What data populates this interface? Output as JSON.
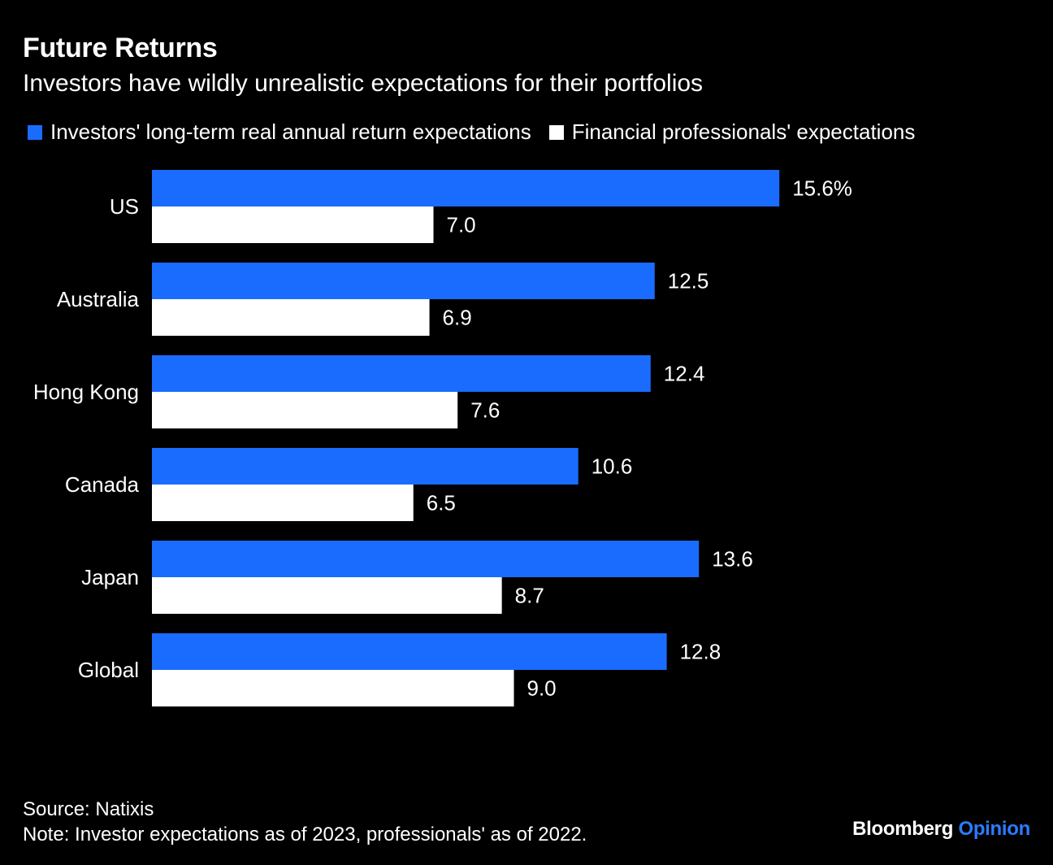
{
  "header": {
    "title": "Future Returns",
    "subtitle": "Investors have wildly unrealistic expectations for their portfolios"
  },
  "legend": {
    "items": [
      {
        "label": "Investors' long-term real annual return expectations",
        "color": "#1a6cff"
      },
      {
        "label": "Financial professionals' expectations",
        "color": "#ffffff"
      }
    ]
  },
  "footer": {
    "source": "Source: Natixis",
    "note": "Note: Investor expectations as of 2023, professionals' as of 2022.",
    "brand_main": "Bloomberg",
    "brand_accent": "Opinion"
  },
  "chart_data": {
    "type": "bar",
    "orientation": "horizontal",
    "title": "Future Returns",
    "subtitle": "Investors have wildly unrealistic expectations for their portfolios",
    "categories": [
      "US",
      "Australia",
      "Hong Kong",
      "Canada",
      "Japan",
      "Global"
    ],
    "series": [
      {
        "name": "Investors' long-term real annual return expectations",
        "color": "#1a6cff",
        "values": [
          15.6,
          12.5,
          12.4,
          10.6,
          13.6,
          12.8
        ],
        "labels": [
          "15.6%",
          "12.5",
          "12.4",
          "10.6",
          "13.6",
          "12.8"
        ]
      },
      {
        "name": "Financial professionals' expectations",
        "color": "#ffffff",
        "values": [
          7.0,
          6.9,
          7.6,
          6.5,
          8.7,
          9.0
        ],
        "labels": [
          "7.0",
          "6.9",
          "7.6",
          "6.5",
          "8.7",
          "9.0"
        ]
      }
    ],
    "xlim": [
      0,
      16
    ],
    "legend_position": "top-left",
    "grid": false
  }
}
